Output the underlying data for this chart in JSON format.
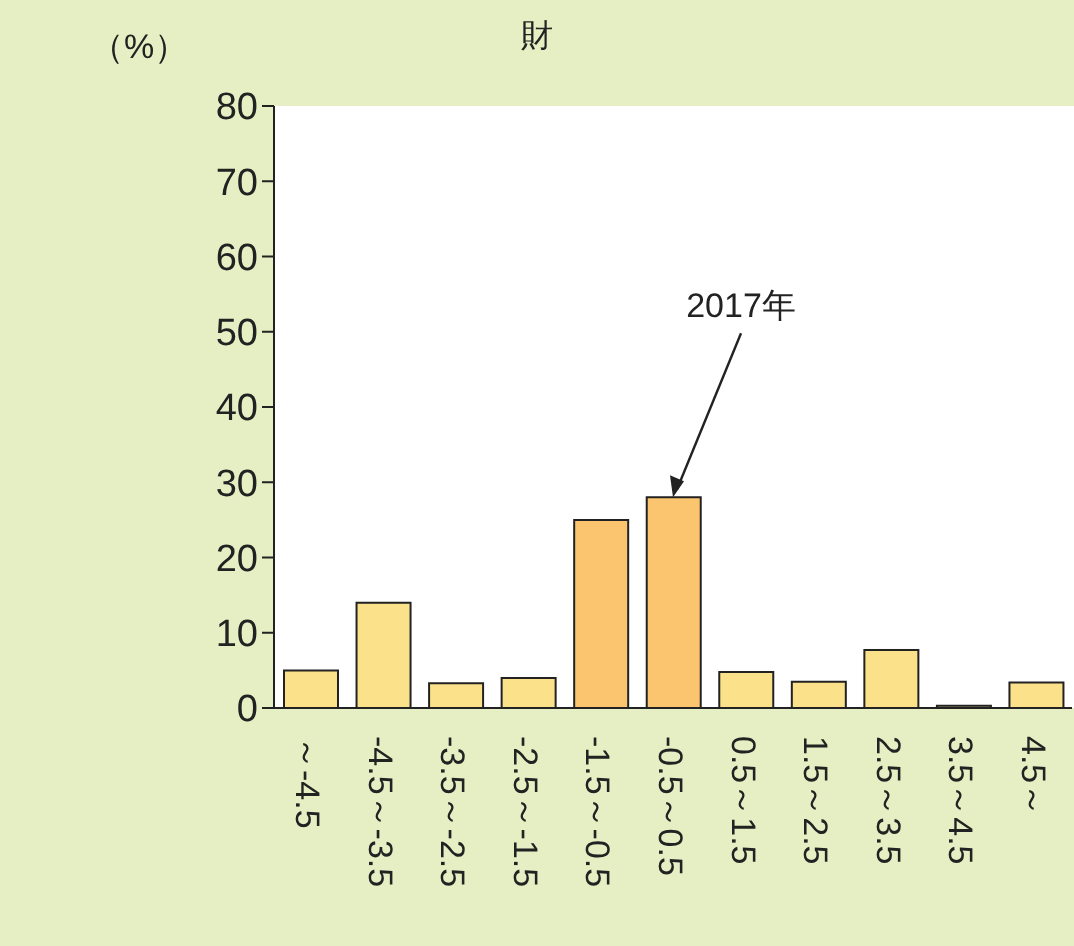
{
  "chart_data": {
    "type": "bar",
    "title": "財",
    "ylabel": "（%）",
    "categories": [
      "～-4.5",
      "-4.5～-3.5",
      "-3.5～-2.5",
      "-2.5～-1.5",
      "-1.5～-0.5",
      "-0.5～0.5",
      "0.5～1.5",
      "1.5～2.5",
      "2.5～3.5",
      "3.5～4.5",
      "4.5～"
    ],
    "values": [
      5,
      14,
      3.3,
      4,
      25,
      28,
      4.8,
      3.5,
      7.7,
      0.3,
      3.4
    ],
    "colors": [
      "#fbe28a",
      "#fbe28a",
      "#fbe28a",
      "#fbe28a",
      "#fbc46f",
      "#fbc46f",
      "#fbe28a",
      "#fbe28a",
      "#fbe28a",
      "#fbe28a",
      "#fbe28a"
    ],
    "ylim": [
      0,
      80
    ],
    "yticks": [
      0,
      10,
      20,
      30,
      40,
      50,
      60,
      70,
      80
    ],
    "annotations": [
      {
        "text": "2017年",
        "x": "-0.5～0.5",
        "y": 28
      }
    ]
  }
}
